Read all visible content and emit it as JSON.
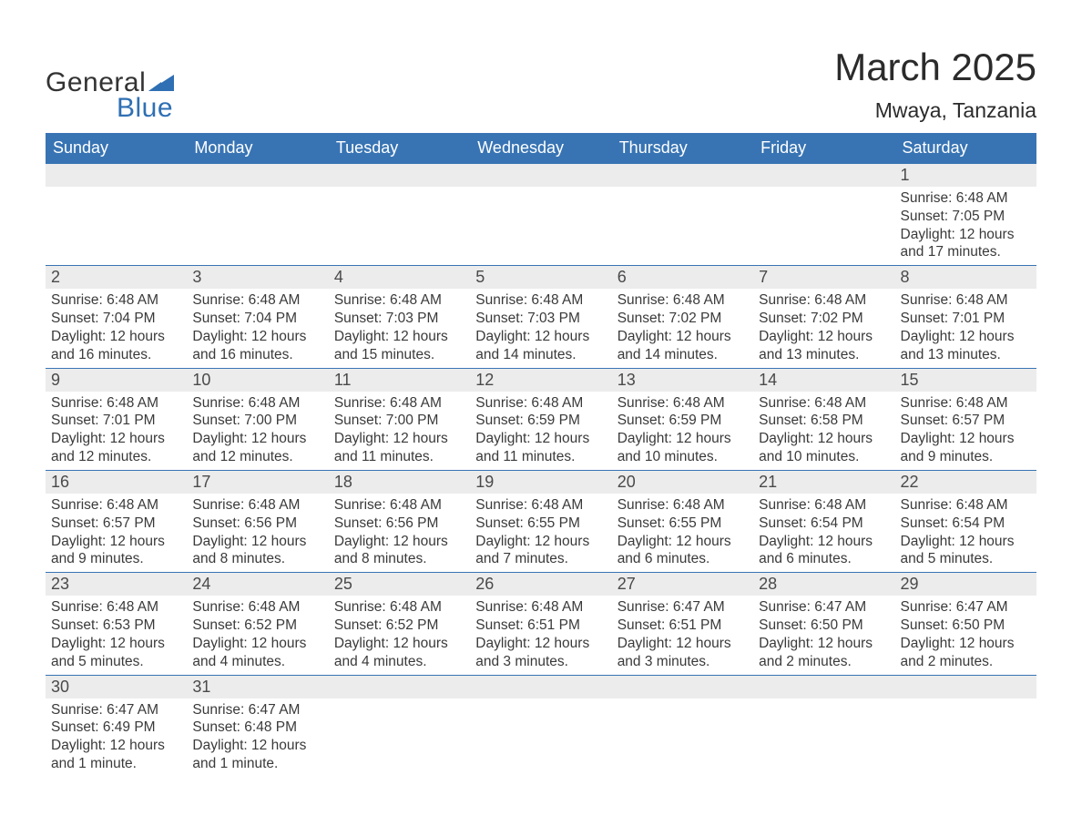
{
  "logo": {
    "text1": "General",
    "text2": "Blue"
  },
  "title": "March 2025",
  "subtitle": "Mwaya, Tanzania",
  "colors": {
    "header_bg": "#3874b4",
    "header_text": "#ffffff",
    "daybar_bg": "#ececec",
    "body_text": "#3a3a3a",
    "logo_blue": "#2f6fb3",
    "page_bg": "#ffffff"
  },
  "typography": {
    "title_fontsize": 42,
    "subtitle_fontsize": 23,
    "weekday_fontsize": 18,
    "daynum_fontsize": 18,
    "body_fontsize": 15.5
  },
  "weekdays": [
    "Sunday",
    "Monday",
    "Tuesday",
    "Wednesday",
    "Thursday",
    "Friday",
    "Saturday"
  ],
  "weeks": [
    [
      {
        "day": "",
        "sunrise": "",
        "sunset": "",
        "daylight": ""
      },
      {
        "day": "",
        "sunrise": "",
        "sunset": "",
        "daylight": ""
      },
      {
        "day": "",
        "sunrise": "",
        "sunset": "",
        "daylight": ""
      },
      {
        "day": "",
        "sunrise": "",
        "sunset": "",
        "daylight": ""
      },
      {
        "day": "",
        "sunrise": "",
        "sunset": "",
        "daylight": ""
      },
      {
        "day": "",
        "sunrise": "",
        "sunset": "",
        "daylight": ""
      },
      {
        "day": "1",
        "sunrise": "Sunrise: 6:48 AM",
        "sunset": "Sunset: 7:05 PM",
        "daylight": "Daylight: 12 hours and 17 minutes."
      }
    ],
    [
      {
        "day": "2",
        "sunrise": "Sunrise: 6:48 AM",
        "sunset": "Sunset: 7:04 PM",
        "daylight": "Daylight: 12 hours and 16 minutes."
      },
      {
        "day": "3",
        "sunrise": "Sunrise: 6:48 AM",
        "sunset": "Sunset: 7:04 PM",
        "daylight": "Daylight: 12 hours and 16 minutes."
      },
      {
        "day": "4",
        "sunrise": "Sunrise: 6:48 AM",
        "sunset": "Sunset: 7:03 PM",
        "daylight": "Daylight: 12 hours and 15 minutes."
      },
      {
        "day": "5",
        "sunrise": "Sunrise: 6:48 AM",
        "sunset": "Sunset: 7:03 PM",
        "daylight": "Daylight: 12 hours and 14 minutes."
      },
      {
        "day": "6",
        "sunrise": "Sunrise: 6:48 AM",
        "sunset": "Sunset: 7:02 PM",
        "daylight": "Daylight: 12 hours and 14 minutes."
      },
      {
        "day": "7",
        "sunrise": "Sunrise: 6:48 AM",
        "sunset": "Sunset: 7:02 PM",
        "daylight": "Daylight: 12 hours and 13 minutes."
      },
      {
        "day": "8",
        "sunrise": "Sunrise: 6:48 AM",
        "sunset": "Sunset: 7:01 PM",
        "daylight": "Daylight: 12 hours and 13 minutes."
      }
    ],
    [
      {
        "day": "9",
        "sunrise": "Sunrise: 6:48 AM",
        "sunset": "Sunset: 7:01 PM",
        "daylight": "Daylight: 12 hours and 12 minutes."
      },
      {
        "day": "10",
        "sunrise": "Sunrise: 6:48 AM",
        "sunset": "Sunset: 7:00 PM",
        "daylight": "Daylight: 12 hours and 12 minutes."
      },
      {
        "day": "11",
        "sunrise": "Sunrise: 6:48 AM",
        "sunset": "Sunset: 7:00 PM",
        "daylight": "Daylight: 12 hours and 11 minutes."
      },
      {
        "day": "12",
        "sunrise": "Sunrise: 6:48 AM",
        "sunset": "Sunset: 6:59 PM",
        "daylight": "Daylight: 12 hours and 11 minutes."
      },
      {
        "day": "13",
        "sunrise": "Sunrise: 6:48 AM",
        "sunset": "Sunset: 6:59 PM",
        "daylight": "Daylight: 12 hours and 10 minutes."
      },
      {
        "day": "14",
        "sunrise": "Sunrise: 6:48 AM",
        "sunset": "Sunset: 6:58 PM",
        "daylight": "Daylight: 12 hours and 10 minutes."
      },
      {
        "day": "15",
        "sunrise": "Sunrise: 6:48 AM",
        "sunset": "Sunset: 6:57 PM",
        "daylight": "Daylight: 12 hours and 9 minutes."
      }
    ],
    [
      {
        "day": "16",
        "sunrise": "Sunrise: 6:48 AM",
        "sunset": "Sunset: 6:57 PM",
        "daylight": "Daylight: 12 hours and 9 minutes."
      },
      {
        "day": "17",
        "sunrise": "Sunrise: 6:48 AM",
        "sunset": "Sunset: 6:56 PM",
        "daylight": "Daylight: 12 hours and 8 minutes."
      },
      {
        "day": "18",
        "sunrise": "Sunrise: 6:48 AM",
        "sunset": "Sunset: 6:56 PM",
        "daylight": "Daylight: 12 hours and 8 minutes."
      },
      {
        "day": "19",
        "sunrise": "Sunrise: 6:48 AM",
        "sunset": "Sunset: 6:55 PM",
        "daylight": "Daylight: 12 hours and 7 minutes."
      },
      {
        "day": "20",
        "sunrise": "Sunrise: 6:48 AM",
        "sunset": "Sunset: 6:55 PM",
        "daylight": "Daylight: 12 hours and 6 minutes."
      },
      {
        "day": "21",
        "sunrise": "Sunrise: 6:48 AM",
        "sunset": "Sunset: 6:54 PM",
        "daylight": "Daylight: 12 hours and 6 minutes."
      },
      {
        "day": "22",
        "sunrise": "Sunrise: 6:48 AM",
        "sunset": "Sunset: 6:54 PM",
        "daylight": "Daylight: 12 hours and 5 minutes."
      }
    ],
    [
      {
        "day": "23",
        "sunrise": "Sunrise: 6:48 AM",
        "sunset": "Sunset: 6:53 PM",
        "daylight": "Daylight: 12 hours and 5 minutes."
      },
      {
        "day": "24",
        "sunrise": "Sunrise: 6:48 AM",
        "sunset": "Sunset: 6:52 PM",
        "daylight": "Daylight: 12 hours and 4 minutes."
      },
      {
        "day": "25",
        "sunrise": "Sunrise: 6:48 AM",
        "sunset": "Sunset: 6:52 PM",
        "daylight": "Daylight: 12 hours and 4 minutes."
      },
      {
        "day": "26",
        "sunrise": "Sunrise: 6:48 AM",
        "sunset": "Sunset: 6:51 PM",
        "daylight": "Daylight: 12 hours and 3 minutes."
      },
      {
        "day": "27",
        "sunrise": "Sunrise: 6:47 AM",
        "sunset": "Sunset: 6:51 PM",
        "daylight": "Daylight: 12 hours and 3 minutes."
      },
      {
        "day": "28",
        "sunrise": "Sunrise: 6:47 AM",
        "sunset": "Sunset: 6:50 PM",
        "daylight": "Daylight: 12 hours and 2 minutes."
      },
      {
        "day": "29",
        "sunrise": "Sunrise: 6:47 AM",
        "sunset": "Sunset: 6:50 PM",
        "daylight": "Daylight: 12 hours and 2 minutes."
      }
    ],
    [
      {
        "day": "30",
        "sunrise": "Sunrise: 6:47 AM",
        "sunset": "Sunset: 6:49 PM",
        "daylight": "Daylight: 12 hours and 1 minute."
      },
      {
        "day": "31",
        "sunrise": "Sunrise: 6:47 AM",
        "sunset": "Sunset: 6:48 PM",
        "daylight": "Daylight: 12 hours and 1 minute."
      },
      {
        "day": "",
        "sunrise": "",
        "sunset": "",
        "daylight": ""
      },
      {
        "day": "",
        "sunrise": "",
        "sunset": "",
        "daylight": ""
      },
      {
        "day": "",
        "sunrise": "",
        "sunset": "",
        "daylight": ""
      },
      {
        "day": "",
        "sunrise": "",
        "sunset": "",
        "daylight": ""
      },
      {
        "day": "",
        "sunrise": "",
        "sunset": "",
        "daylight": ""
      }
    ]
  ]
}
